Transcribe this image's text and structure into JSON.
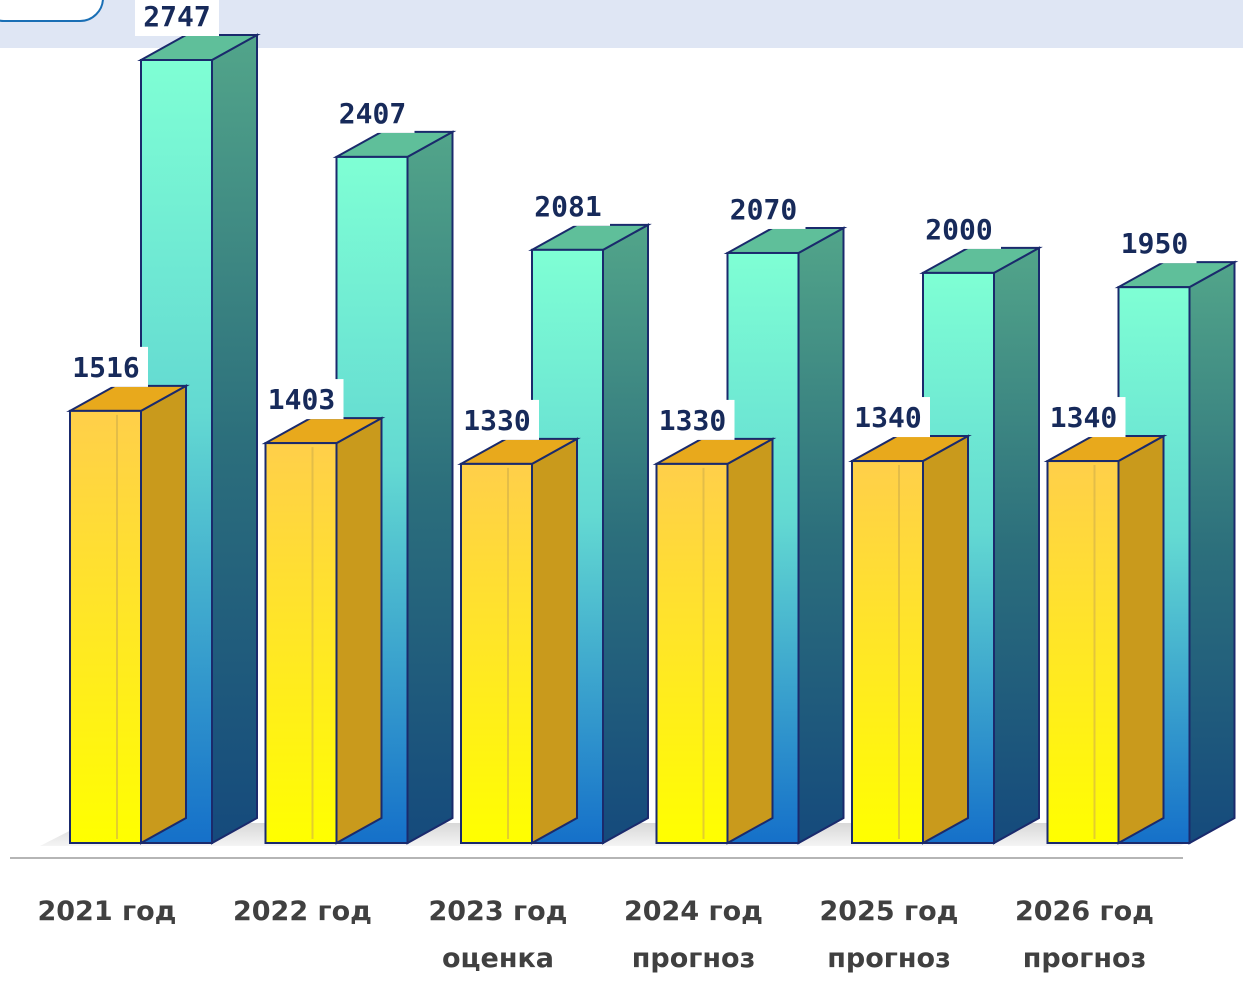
{
  "chart_data": {
    "type": "bar",
    "categories": [
      [
        "2021 год",
        ""
      ],
      [
        "2022 год",
        ""
      ],
      [
        "2023 год",
        "оценка"
      ],
      [
        "2024 год",
        "прогноз"
      ],
      [
        "2025 год",
        "прогноз"
      ],
      [
        "2026 год",
        "прогноз"
      ]
    ],
    "series": [
      {
        "values": [
          1516,
          1403,
          1330,
          1330,
          1340,
          1340
        ],
        "color": "#ffd23a"
      },
      {
        "values": [
          2747,
          2407,
          2081,
          2070,
          2000,
          1950
        ],
        "color": "#7fffd4"
      }
    ],
    "ylim": [
      0,
      2747
    ],
    "grid": false
  },
  "colors": {
    "band": "#dfe6f4",
    "value_text": "#172a5a",
    "category_text": "#404040",
    "bar_outline": "#1a2a6c"
  }
}
